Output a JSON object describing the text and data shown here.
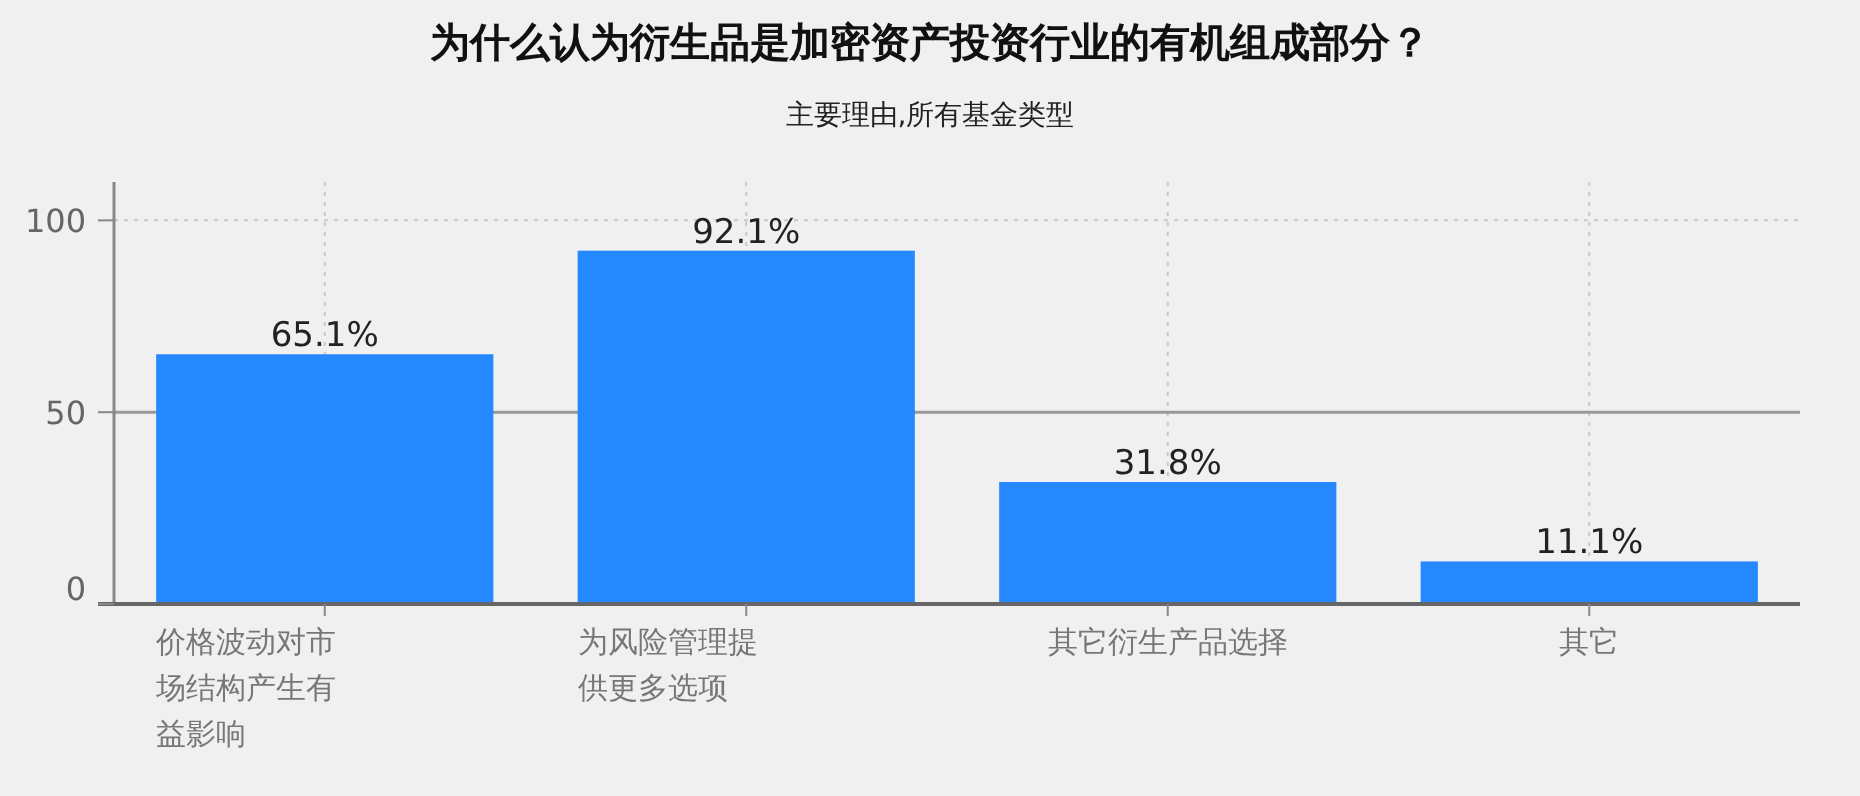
{
  "chart_data": {
    "type": "bar",
    "title": "为什么认为衍生品是加密资产投资行业的有机组成部分？",
    "subtitle": "主要理由,所有基金类型",
    "categories": [
      "价格波动对市场结构产生有益影响",
      "为风险管理提供更多选项",
      "其它衍生产品选择",
      "其它"
    ],
    "values": [
      65.1,
      92.1,
      31.8,
      11.1
    ],
    "color": "#2688ff",
    "value_labels": [
      "65.1%",
      "92.1%",
      "31.8%",
      "11.1%"
    ],
    "ylim": [
      0,
      110
    ],
    "yticks": [
      0,
      50,
      100
    ],
    "grid": true,
    "ref_lines": [
      {
        "axis": "y",
        "value": 50,
        "color": "#999999",
        "line_style": "solid"
      }
    ]
  }
}
